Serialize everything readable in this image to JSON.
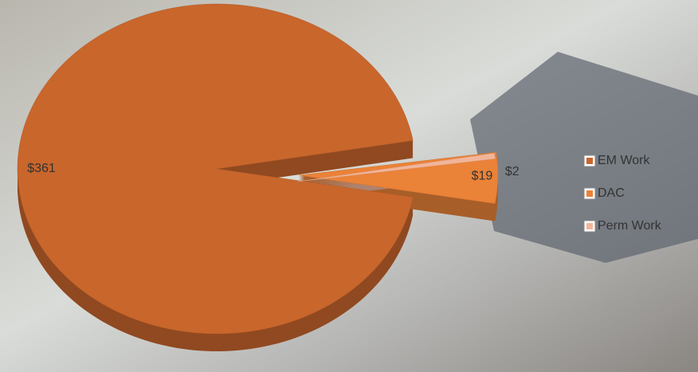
{
  "chart_data": {
    "type": "pie",
    "categories": [
      "EM Work",
      "DAC",
      "Perm Work"
    ],
    "values": [
      361,
      19,
      2
    ],
    "value_labels": [
      "$361",
      "$19",
      "$2"
    ],
    "colors": [
      "#c8662c",
      "#ea8238",
      "#f2b59a"
    ],
    "legend": "right"
  }
}
